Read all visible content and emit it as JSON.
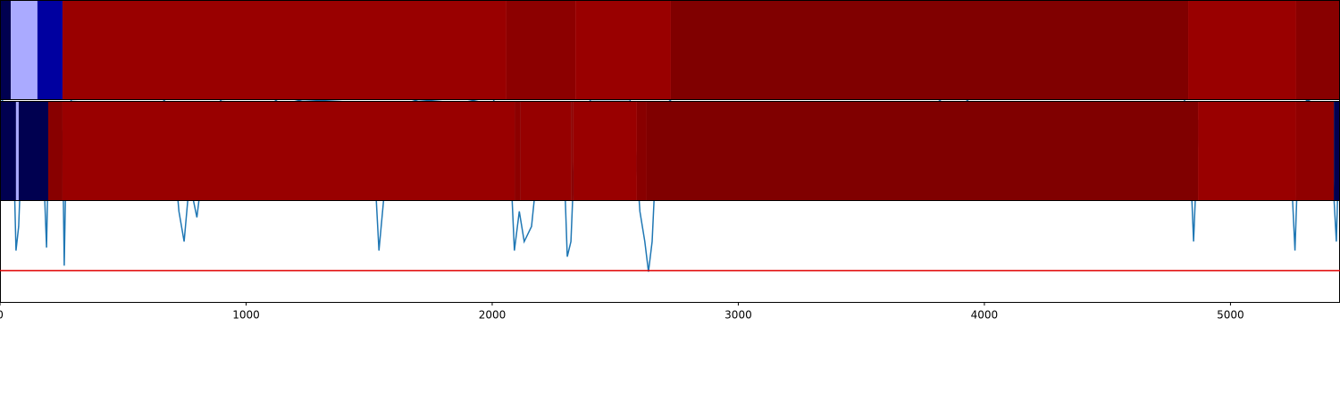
{
  "chart_data": [
    {
      "type": "heatmap",
      "xlim": [
        0,
        5445
      ],
      "edges": [
        0,
        44,
        152,
        254,
        2058,
        2338,
        2726,
        4828,
        5267,
        5445
      ],
      "colors": [
        "#000050",
        "#aaaaff",
        "#0000a0",
        "#990000",
        "#8c0000",
        "#990000",
        "#800000",
        "#990000",
        "#880000"
      ]
    },
    {
      "type": "heatmap",
      "xlim": [
        0,
        5445
      ],
      "edges": [
        0,
        65,
        76,
        196,
        254,
        2091,
        2116,
        2320,
        2330,
        2588,
        2628,
        4868,
        5267,
        5420,
        5445
      ],
      "colors": [
        "#000050",
        "#aaaaff",
        "#000050",
        "#880000",
        "#990000",
        "#8c0000",
        "#960000",
        "#8c0000",
        "#990000",
        "#880000",
        "#800000",
        "#990000",
        "#900000",
        "#000050"
      ]
    },
    {
      "type": "line",
      "xlim": [
        0,
        5445
      ],
      "ylim": [
        0,
        1
      ],
      "xticks": [
        0,
        1000,
        2000,
        3000,
        4000,
        5000
      ],
      "threshold": 0.104,
      "threshold_color": "#e00000",
      "color": "#1f77b4",
      "x": [
        0,
        15,
        40,
        55,
        65,
        76,
        94,
        145,
        170,
        189,
        200,
        232,
        254,
        261,
        272,
        290,
        650,
        690,
        727,
        748,
        770,
        800,
        850,
        900,
        1100,
        1150,
        1180,
        1230,
        1480,
        1525,
        1540,
        1560,
        1580,
        1700,
        1850,
        1880,
        2000,
        2040,
        2075,
        2090,
        2110,
        2130,
        2160,
        2185,
        2210,
        2270,
        2290,
        2305,
        2320,
        2340,
        2380,
        2400,
        2560,
        2580,
        2600,
        2620,
        2635,
        2650,
        2670,
        2700,
        2740,
        3800,
        3860,
        3920,
        3950,
        4810,
        4830,
        4850,
        4870,
        4900,
        5200,
        5240,
        5262,
        5280,
        5310,
        5380,
        5410,
        5430,
        5445
      ],
      "values": [
        0.68,
        0.66,
        0.64,
        0.5,
        0.17,
        0.25,
        0.64,
        0.66,
        0.6,
        0.18,
        0.64,
        0.66,
        0.55,
        0.12,
        0.62,
        0.67,
        0.68,
        0.65,
        0.3,
        0.2,
        0.4,
        0.28,
        0.62,
        0.67,
        0.68,
        0.65,
        0.66,
        0.67,
        0.66,
        0.4,
        0.17,
        0.35,
        0.64,
        0.67,
        0.66,
        0.66,
        0.68,
        0.6,
        0.45,
        0.17,
        0.3,
        0.2,
        0.25,
        0.45,
        0.62,
        0.65,
        0.5,
        0.15,
        0.2,
        0.6,
        0.64,
        0.67,
        0.67,
        0.55,
        0.3,
        0.2,
        0.1,
        0.2,
        0.55,
        0.65,
        0.68,
        0.68,
        0.64,
        0.66,
        0.68,
        0.68,
        0.6,
        0.2,
        0.6,
        0.66,
        0.66,
        0.55,
        0.17,
        0.6,
        0.67,
        0.64,
        0.5,
        0.2,
        0.63
      ]
    }
  ]
}
